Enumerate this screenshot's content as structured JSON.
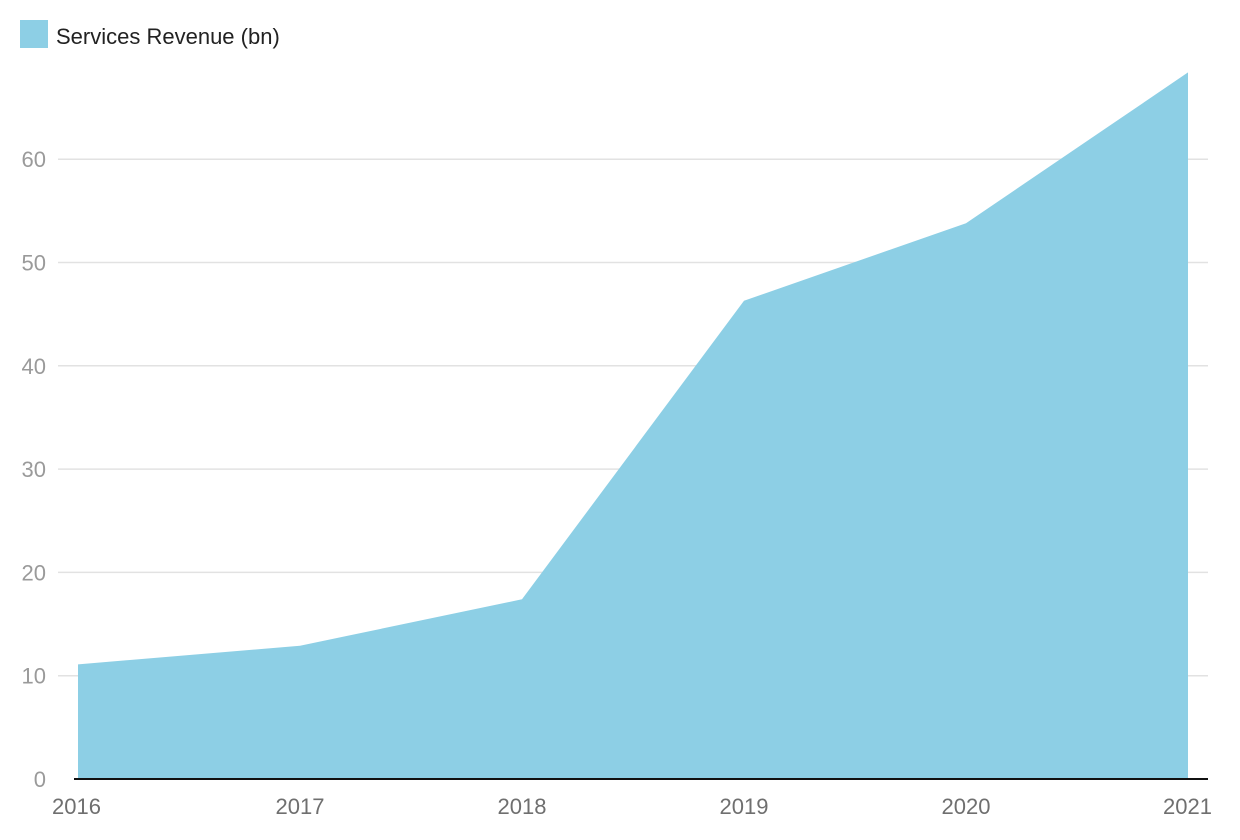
{
  "chart_data": {
    "type": "area",
    "title": "",
    "xlabel": "",
    "ylabel": "",
    "categories": [
      "2016",
      "2017",
      "2018",
      "2019",
      "2020",
      "2021"
    ],
    "series": [
      {
        "name": "Services Revenue (bn)",
        "values": [
          11.1,
          12.9,
          17.4,
          46.3,
          53.8,
          68.4
        ],
        "color": "#8dcfe5"
      }
    ],
    "y_ticks": [
      0,
      10,
      20,
      30,
      40,
      50,
      60
    ],
    "ylim": [
      0,
      70
    ],
    "grid": true,
    "legend": "top-left"
  }
}
